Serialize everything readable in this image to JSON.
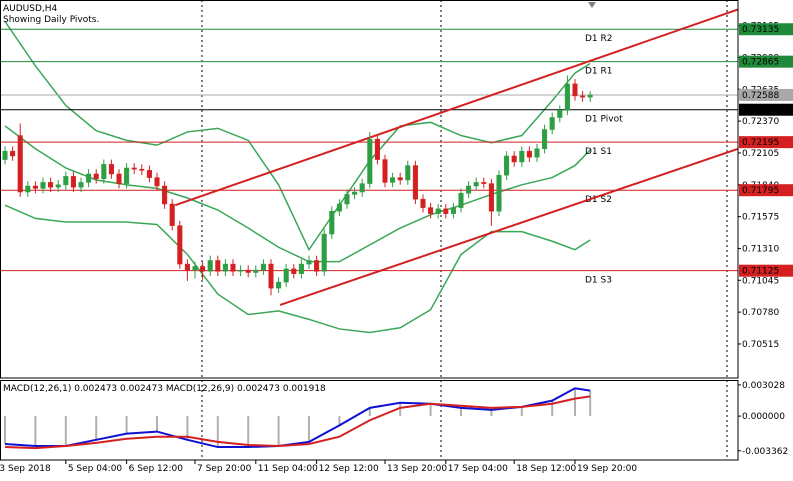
{
  "chart_data": [
    {
      "type": "candlestick",
      "title": "AUDUSD,H4",
      "subtitle": "Showing Daily Pivots.",
      "xlim": [
        -0.66,
        96.45
      ],
      "ylim": [
        0.7024,
        0.7337
      ],
      "xticks": [
        {
          "value": -1,
          "label": "3 Sep 2018"
        },
        {
          "value": 8,
          "label": "5 Sep 04:00"
        },
        {
          "value": 16,
          "label": "6 Sep 12:00"
        },
        {
          "value": 25,
          "label": "7 Sep 20:00"
        },
        {
          "value": 33,
          "label": "11 Sep 04:00"
        },
        {
          "value": 41,
          "label": "12 Sep 12:00"
        },
        {
          "value": 50,
          "label": "13 Sep 20:00"
        },
        {
          "value": 58,
          "label": "17 Sep 04:00"
        },
        {
          "value": 67,
          "label": "18 Sep 12:00"
        },
        {
          "value": 75,
          "label": "19 Sep 20:00"
        }
      ],
      "yticks": [
        0.73165,
        {
          "value": 0.729,
          "label": "0.72900"
        },
        0.72635,
        {
          "value": 0.7237,
          "label": "0.72370"
        },
        0.72105,
        {
          "value": 0.7184,
          "label": "0.71840"
        },
        0.71575,
        {
          "value": 0.7131,
          "label": "0.71310"
        },
        0.71045,
        {
          "value": 0.7078,
          "label": "0.70780"
        },
        0.70515
      ],
      "up_color": "#2e9e44",
      "down_color": "#d42020",
      "candles": {
        "open": [
          0.7205,
          0.7212,
          0.7225,
          0.7178,
          0.7183,
          0.7181,
          0.7186,
          0.7182,
          0.7184,
          0.7191,
          0.7182,
          0.7186,
          0.7193,
          0.7189,
          0.7201,
          0.7193,
          0.7185,
          0.7198,
          0.7197,
          0.7196,
          0.719,
          0.7183,
          0.7168,
          0.715,
          0.7118,
          0.7113,
          0.7116,
          0.7112,
          0.7121,
          0.7112,
          0.7118,
          0.7112,
          0.7113,
          0.7111,
          0.7113,
          0.7118,
          0.7098,
          0.7103,
          0.7114,
          0.711,
          0.7118,
          0.7121,
          0.7112,
          0.7143,
          0.7162,
          0.7168,
          0.7176,
          0.7178,
          0.7185,
          0.7222,
          0.7205,
          0.7186,
          0.719,
          0.7188,
          0.72,
          0.7172,
          0.7165,
          0.716,
          0.7164,
          0.716,
          0.7165,
          0.7177,
          0.7183,
          0.7186,
          0.7185,
          0.7162,
          0.7192,
          0.7208,
          0.7203,
          0.7212,
          0.7207,
          0.7214,
          0.723,
          0.724,
          0.7246,
          0.7268,
          0.7258,
          0.7257
        ],
        "high": [
          0.7216,
          0.7216,
          0.7235,
          0.7187,
          0.7187,
          0.719,
          0.719,
          0.7188,
          0.7195,
          0.7195,
          0.719,
          0.7197,
          0.7197,
          0.7205,
          0.7205,
          0.7197,
          0.7202,
          0.7202,
          0.7201,
          0.72,
          0.7194,
          0.7187,
          0.7172,
          0.7154,
          0.7122,
          0.712,
          0.712,
          0.7125,
          0.7125,
          0.7122,
          0.7122,
          0.7117,
          0.7117,
          0.7117,
          0.7122,
          0.7122,
          0.7107,
          0.7118,
          0.7118,
          0.7122,
          0.7125,
          0.7125,
          0.7147,
          0.7166,
          0.7172,
          0.718,
          0.7182,
          0.7189,
          0.7228,
          0.7226,
          0.7209,
          0.7194,
          0.7194,
          0.7204,
          0.7204,
          0.7176,
          0.7169,
          0.7168,
          0.7168,
          0.7169,
          0.7181,
          0.7187,
          0.719,
          0.719,
          0.7189,
          0.7196,
          0.7212,
          0.7212,
          0.7216,
          0.7216,
          0.7218,
          0.7234,
          0.7244,
          0.725,
          0.7275,
          0.7272,
          0.7262,
          0.7262
        ],
        "low": [
          0.7201,
          0.7204,
          0.7174,
          0.7174,
          0.7177,
          0.7177,
          0.7178,
          0.7178,
          0.718,
          0.7178,
          0.7178,
          0.7182,
          0.7185,
          0.7185,
          0.7189,
          0.7181,
          0.7181,
          0.7193,
          0.7192,
          0.7186,
          0.7179,
          0.7164,
          0.7146,
          0.7114,
          0.7104,
          0.7106,
          0.7105,
          0.7108,
          0.7108,
          0.7108,
          0.7108,
          0.7108,
          0.7107,
          0.7107,
          0.7109,
          0.7092,
          0.7094,
          0.7099,
          0.7106,
          0.7106,
          0.7114,
          0.7108,
          0.7108,
          0.7139,
          0.7158,
          0.7164,
          0.7172,
          0.7174,
          0.7181,
          0.7201,
          0.7182,
          0.7182,
          0.7184,
          0.7184,
          0.7168,
          0.7161,
          0.7156,
          0.7156,
          0.7156,
          0.7156,
          0.7161,
          0.7173,
          0.7179,
          0.7181,
          0.715,
          0.7158,
          0.7188,
          0.7199,
          0.7199,
          0.7203,
          0.7203,
          0.721,
          0.7226,
          0.7236,
          0.7242,
          0.7254,
          0.7253,
          0.7253
        ],
        "close": [
          0.7212,
          0.7208,
          0.7178,
          0.7183,
          0.7181,
          0.7186,
          0.7182,
          0.7184,
          0.7191,
          0.7182,
          0.7186,
          0.7193,
          0.7189,
          0.7201,
          0.7193,
          0.7185,
          0.7198,
          0.7197,
          0.7196,
          0.719,
          0.7183,
          0.7168,
          0.715,
          0.7118,
          0.7113,
          0.7116,
          0.7112,
          0.7121,
          0.7112,
          0.7118,
          0.7112,
          0.7113,
          0.7111,
          0.7113,
          0.7118,
          0.7098,
          0.7103,
          0.7114,
          0.711,
          0.7118,
          0.7121,
          0.7112,
          0.7143,
          0.7162,
          0.7168,
          0.7176,
          0.7178,
          0.7185,
          0.7222,
          0.7205,
          0.7186,
          0.719,
          0.7188,
          0.72,
          0.7172,
          0.7165,
          0.716,
          0.7164,
          0.716,
          0.7165,
          0.7177,
          0.7183,
          0.7186,
          0.7185,
          0.7162,
          0.7192,
          0.7208,
          0.7203,
          0.7212,
          0.7207,
          0.7214,
          0.723,
          0.724,
          0.7246,
          0.7268,
          0.7258,
          0.7257,
          0.72588
        ]
      },
      "bands": [
        {
          "color": "#3aa757",
          "x": [
            0,
            4,
            8,
            12,
            16,
            20,
            24,
            28,
            32,
            36,
            40,
            44,
            48,
            52,
            56,
            60,
            64,
            68,
            72,
            75,
            77
          ],
          "values": [
            0.732,
            0.7283,
            0.725,
            0.7229,
            0.7221,
            0.7217,
            0.7228,
            0.7231,
            0.7221,
            0.7184,
            0.713,
            0.7167,
            0.7204,
            0.7233,
            0.7236,
            0.7225,
            0.7219,
            0.7225,
            0.7254,
            0.7277,
            0.7285
          ]
        },
        {
          "color": "#3aa757",
          "x": [
            0,
            4,
            8,
            12,
            16,
            20,
            24,
            28,
            32,
            36,
            40,
            44,
            48,
            52,
            56,
            60,
            64,
            68,
            72,
            75,
            77
          ],
          "values": [
            0.7233,
            0.7214,
            0.7198,
            0.7188,
            0.7184,
            0.7181,
            0.7173,
            0.7163,
            0.7148,
            0.7132,
            0.712,
            0.712,
            0.7134,
            0.7148,
            0.7159,
            0.7167,
            0.7176,
            0.7184,
            0.719,
            0.72,
            0.7213
          ]
        },
        {
          "color": "#3aa757",
          "x": [
            0,
            4,
            8,
            12,
            16,
            20,
            24,
            28,
            32,
            36,
            40,
            44,
            48,
            52,
            56,
            60,
            64,
            68,
            72,
            75,
            77
          ],
          "values": [
            0.7167,
            0.7156,
            0.7153,
            0.7153,
            0.7153,
            0.7151,
            0.7126,
            0.7093,
            0.7076,
            0.7079,
            0.7072,
            0.7064,
            0.7061,
            0.7065,
            0.708,
            0.7126,
            0.7145,
            0.7145,
            0.7137,
            0.713,
            0.7138
          ]
        }
      ],
      "trendlines": [
        {
          "color": "#d42020",
          "x": [
            22.4,
            96.45
          ],
          "values": [
            0.7167,
            0.733
          ]
        },
        {
          "color": "#d42020",
          "x": [
            36.2,
            96.45
          ],
          "values": [
            0.7084,
            0.7214
          ]
        }
      ],
      "pivots": [
        {
          "name": "D1 R2",
          "value": 0.73135,
          "color": "#1f8a3a"
        },
        {
          "name": "D1 R1",
          "value": 0.72865,
          "color": "#1f8a3a"
        },
        {
          "name": "D1 Pivot",
          "value": 0.72465,
          "color": "#000000"
        },
        {
          "name": "D1 S1",
          "value": 0.72195,
          "color": "#d42020"
        },
        {
          "name": "D1 S2",
          "value": 0.71795,
          "color": "#d42020"
        },
        {
          "name": "D1 S3",
          "value": 0.71125,
          "color": "#d42020"
        }
      ],
      "bid": {
        "value": 0.72588,
        "color": "#a8a8a8"
      }
    },
    {
      "type": "macd",
      "title": "MACD(12,26,1) 0.002473 0.002473 MACD(12,26,9) 0.002473 0.001918",
      "ylim": [
        -0.00416,
        0.003406
      ],
      "yticks": [
        0.003028,
        {
          "value": 0,
          "label": "0.000000"
        },
        -0.003362
      ],
      "histogram_color": "#b0b0b0",
      "series": [
        {
          "color": "#1010d0",
          "x": [
            0,
            4,
            8,
            12,
            16,
            20,
            24,
            28,
            32,
            36,
            40,
            44,
            48,
            52,
            56,
            60,
            64,
            68,
            72,
            75,
            77
          ],
          "values": [
            -0.0027,
            -0.0029,
            -0.0029,
            -0.0023,
            -0.0017,
            -0.0015,
            -0.0023,
            -0.003,
            -0.003,
            -0.0029,
            -0.0025,
            -0.0009,
            0.0008,
            0.0013,
            0.0012,
            0.0008,
            0.0006,
            0.0009,
            0.0015,
            0.0027,
            0.002473
          ]
        },
        {
          "color": "#d42020",
          "x": [
            0,
            4,
            8,
            12,
            16,
            20,
            24,
            28,
            32,
            36,
            40,
            44,
            48,
            52,
            56,
            60,
            64,
            68,
            72,
            75,
            77
          ],
          "values": [
            -0.003,
            -0.0031,
            -0.0029,
            -0.0026,
            -0.0022,
            -0.002,
            -0.002,
            -0.0025,
            -0.0028,
            -0.0029,
            -0.0027,
            -0.002,
            -0.0004,
            0.0008,
            0.0012,
            0.001,
            0.0008,
            0.0009,
            0.0012,
            0.0017,
            0.001918
          ]
        }
      ]
    }
  ]
}
